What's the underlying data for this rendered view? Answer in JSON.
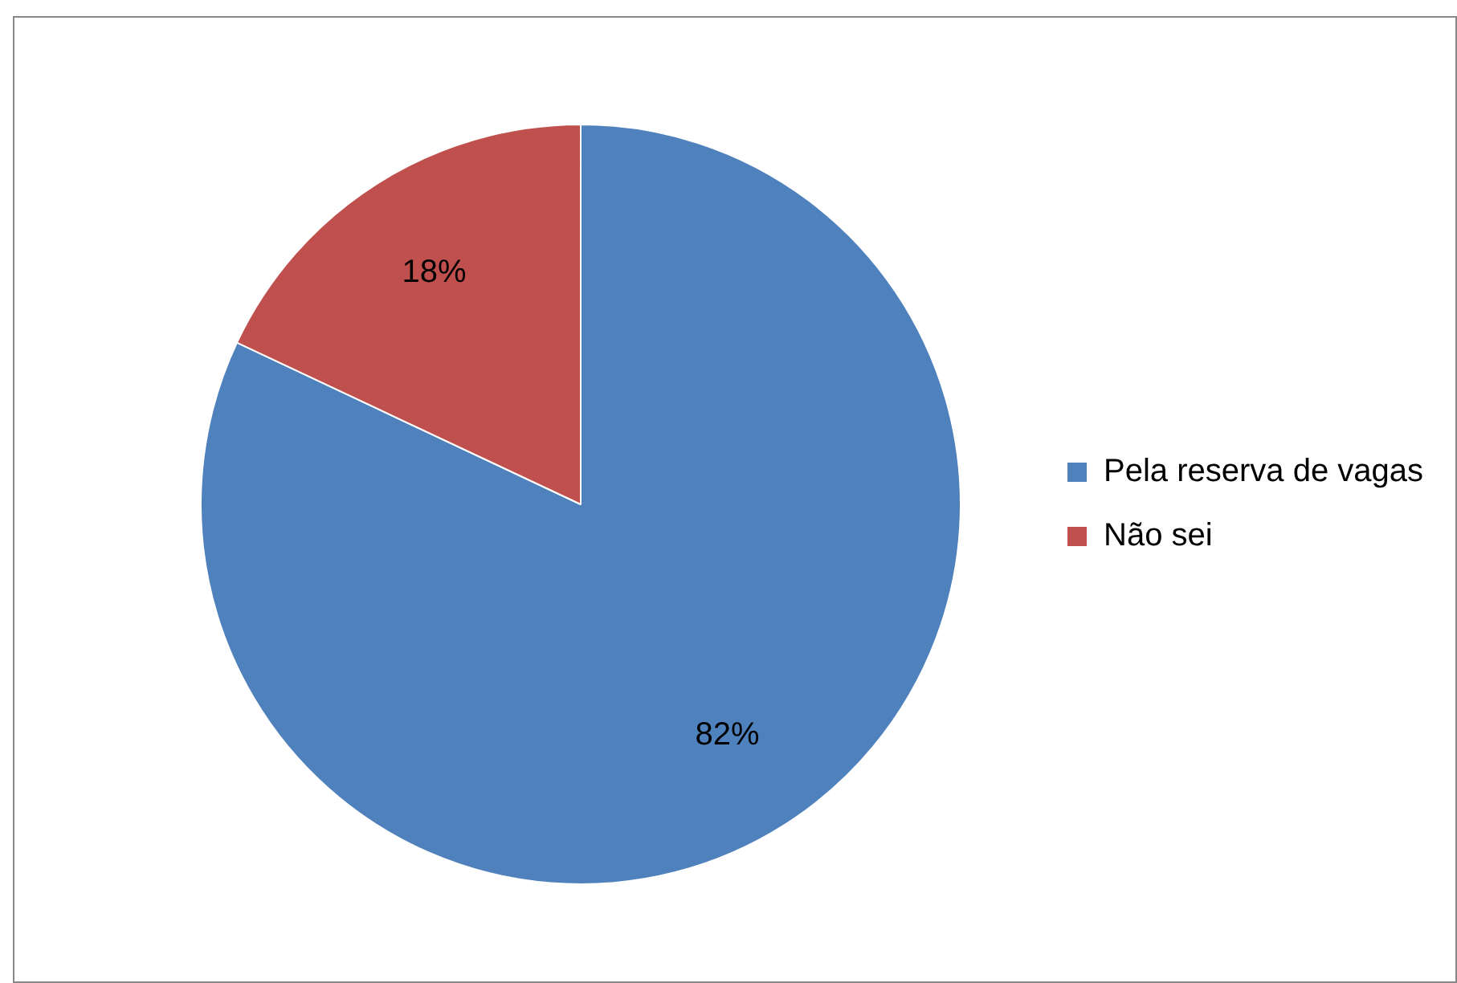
{
  "chart_data": {
    "type": "pie",
    "categories": [
      "Pela reserva de vagas",
      "Não sei"
    ],
    "values": [
      82,
      18
    ],
    "colors": [
      "#4f81bd",
      "#c0504d"
    ],
    "value_labels": [
      "82%",
      "18%"
    ],
    "legend": "right"
  }
}
